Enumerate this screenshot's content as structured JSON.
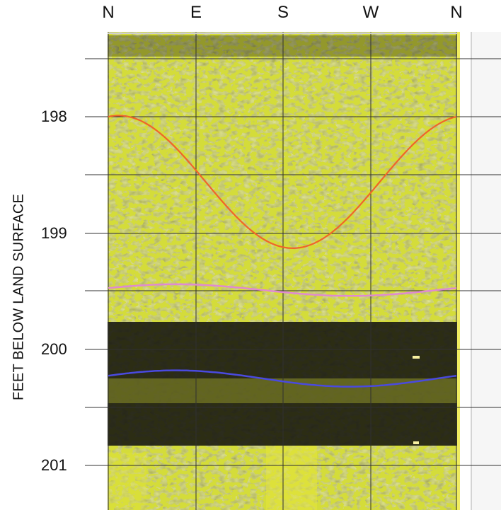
{
  "compass": [
    "N",
    "E",
    "S",
    "W",
    "N"
  ],
  "ylabel": "FEET BELOW LAND SURFACE",
  "depth_labels": [
    "198",
    "199",
    "200",
    "201"
  ],
  "colors": {
    "background_light": "#d4dc3a",
    "background_dark": "#14150f",
    "sinusoid_fracture": "#f0652a",
    "bedding_top": "#e08ad0",
    "bedding_base": "#4a4adf",
    "grid": "#303030",
    "edge_strip": "#f0ec60"
  },
  "depth_range": [
    197.1,
    201.25
  ],
  "traces": [
    {
      "id": "fracture",
      "color_key": "sinusoid_fracture",
      "center_ft": 198.56,
      "amplitude_ft": 0.57,
      "phase_ft_at_N": 198.0
    },
    {
      "id": "bedding-top",
      "color_key": "bedding_top",
      "center_ft": 199.49,
      "amplitude_ft": 0.05
    },
    {
      "id": "bedding-base",
      "color_key": "bedding_base",
      "center_ft": 200.25,
      "amplitude_ft": 0.07
    }
  ]
}
